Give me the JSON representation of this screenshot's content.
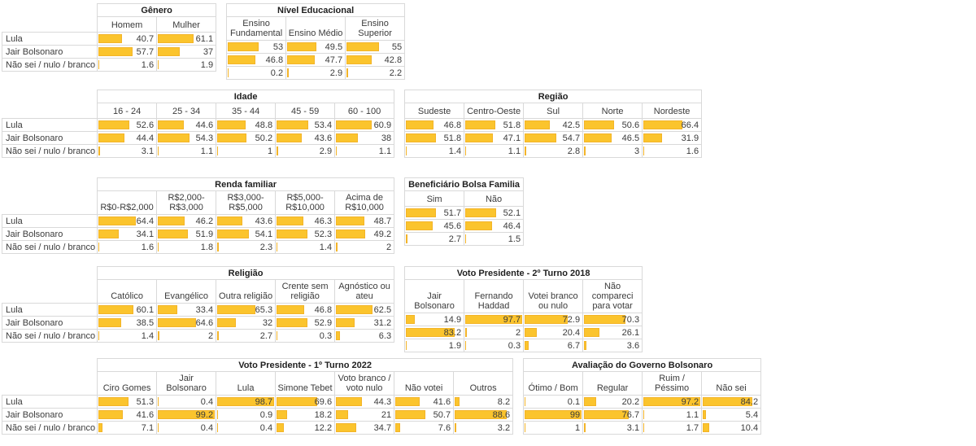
{
  "report_title": "Crosstab de intenção de voto (Lula x Jair Bolsonaro) com barras de dados",
  "styles": {
    "bar_fill": "#fbc42d",
    "bar_edge": "#f3b429",
    "grid_line": "#d9d9d9",
    "text_color": "#3b3b3b",
    "background": "#ffffff"
  },
  "chart_data": [
    {
      "type": "table",
      "groups": [
        {
          "title": "Gênero",
          "columns": [
            "Homem",
            "Mulher"
          ]
        },
        {
          "title": "Nível Educacional",
          "columns": [
            "Ensino Fundamental",
            "Ensino Médio",
            "Ensino Superior"
          ]
        }
      ],
      "rows": [
        {
          "label": "Lula",
          "values": [
            40.7,
            61.1,
            53,
            49.5,
            55
          ]
        },
        {
          "label": "Jair Bolsonaro",
          "values": [
            57.7,
            37,
            46.8,
            47.7,
            42.8
          ]
        },
        {
          "label": "Não sei / nulo / branco",
          "values": [
            1.6,
            1.9,
            0.2,
            2.9,
            2.2
          ]
        }
      ]
    },
    {
      "type": "table",
      "groups": [
        {
          "title": "Idade",
          "columns": [
            "16 - 24",
            "25 - 34",
            "35 - 44",
            "45 - 59",
            "60 - 100"
          ]
        },
        {
          "title": "Região",
          "columns": [
            "Sudeste",
            "Centro-Oeste",
            "Sul",
            "Norte",
            "Nordeste"
          ]
        }
      ],
      "rows": [
        {
          "label": "Lula",
          "values": [
            52.6,
            44.6,
            48.8,
            53.4,
            60.9,
            46.8,
            51.8,
            42.5,
            50.6,
            66.4
          ]
        },
        {
          "label": "Jair Bolsonaro",
          "values": [
            44.4,
            54.3,
            50.2,
            43.6,
            38,
            51.8,
            47.1,
            54.7,
            46.5,
            31.9
          ]
        },
        {
          "label": "Não sei / nulo / branco",
          "values": [
            3.1,
            1.1,
            1,
            2.9,
            1.1,
            1.4,
            1.1,
            2.8,
            3,
            1.6
          ]
        }
      ]
    },
    {
      "type": "table",
      "groups": [
        {
          "title": "Renda familiar",
          "columns": [
            "R$0-R$2,000",
            "R$2,000-R$3,000",
            "R$3,000-R$5,000",
            "R$5,000-R$10,000",
            "Acima de R$10,000"
          ]
        },
        {
          "title": "Beneficiário Bolsa Familia",
          "columns": [
            "Sim",
            "Não"
          ]
        }
      ],
      "rows": [
        {
          "label": "Lula",
          "values": [
            64.4,
            46.2,
            43.6,
            46.3,
            48.7,
            51.7,
            52.1
          ]
        },
        {
          "label": "Jair Bolsonaro",
          "values": [
            34.1,
            51.9,
            54.1,
            52.3,
            49.2,
            45.6,
            46.4
          ]
        },
        {
          "label": "Não sei / nulo / branco",
          "values": [
            1.6,
            1.8,
            2.3,
            1.4,
            2,
            2.7,
            1.5
          ]
        }
      ]
    },
    {
      "type": "table",
      "groups": [
        {
          "title": "Religião",
          "columns": [
            "Católico",
            "Evangélico",
            "Outra religião",
            "Crente sem religião",
            "Agnóstico ou ateu"
          ]
        },
        {
          "title": "Voto Presidente - 2º Turno 2018",
          "columns": [
            "Jair Bolsonaro",
            "Fernando Haddad",
            "Votei branco ou nulo",
            "Não compareci para votar"
          ]
        }
      ],
      "rows": [
        {
          "label": "Lula",
          "values": [
            60.1,
            33.4,
            65.3,
            46.8,
            62.5,
            14.9,
            97.7,
            72.9,
            70.3
          ]
        },
        {
          "label": "Jair Bolsonaro",
          "values": [
            38.5,
            64.6,
            32,
            52.9,
            31.2,
            83.2,
            2,
            20.4,
            26.1
          ]
        },
        {
          "label": "Não sei / nulo / branco",
          "values": [
            1.4,
            2,
            2.7,
            0.3,
            6.3,
            1.9,
            0.3,
            6.7,
            3.6
          ]
        }
      ]
    },
    {
      "type": "table",
      "groups": [
        {
          "title": "Voto Presidente - 1º Turno 2022",
          "columns": [
            "Ciro Gomes",
            "Jair Bolsonaro",
            "Lula",
            "Simone Tebet",
            "Voto branco / voto nulo",
            "Não votei",
            "Outros"
          ]
        },
        {
          "title": "Avaliação do Governo Bolsonaro",
          "columns": [
            "Ótimo / Bom",
            "Regular",
            "Ruim / Péssimo",
            "Não sei"
          ]
        }
      ],
      "rows": [
        {
          "label": "Lula",
          "values": [
            51.3,
            0.4,
            98.7,
            69.6,
            44.3,
            41.6,
            8.2,
            0.1,
            20.2,
            97.2,
            84.2
          ]
        },
        {
          "label": "Jair Bolsonaro",
          "values": [
            41.6,
            99.2,
            0.9,
            18.2,
            21,
            50.7,
            88.6,
            99,
            76.7,
            1.1,
            5.4
          ]
        },
        {
          "label": "Não sei / nulo / branco",
          "values": [
            7.1,
            0.4,
            0.4,
            12.2,
            34.7,
            7.6,
            3.2,
            1,
            3.1,
            1.7,
            10.4
          ]
        }
      ]
    }
  ],
  "bar_scale": {
    "min": 0,
    "max": 100
  }
}
